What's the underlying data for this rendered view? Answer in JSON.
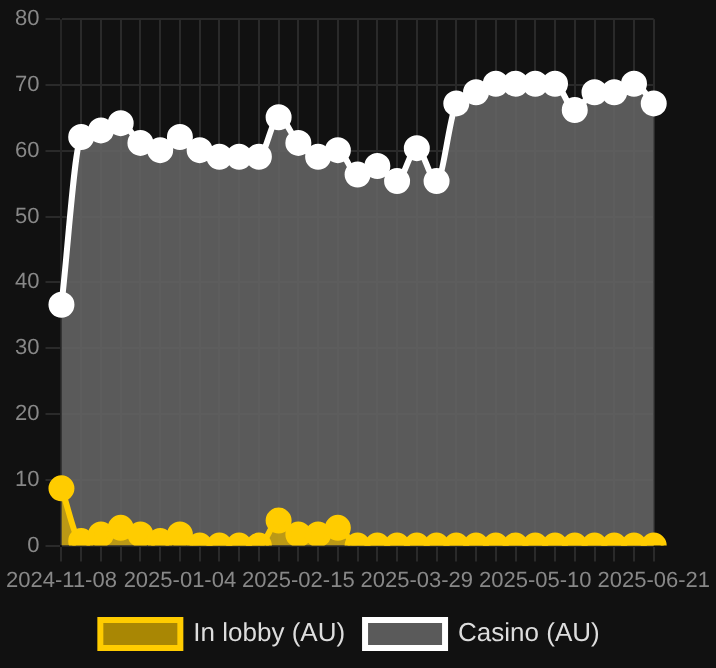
{
  "chart_data": {
    "type": "area",
    "categories": [
      "2024-11-08",
      null,
      null,
      null,
      null,
      null,
      "2025-01-04",
      null,
      null,
      null,
      null,
      null,
      "2025-02-15",
      null,
      null,
      null,
      null,
      null,
      "2025-03-29",
      null,
      null,
      null,
      null,
      null,
      "2025-05-10",
      null,
      null,
      null,
      null,
      null,
      "2025-06-21"
    ],
    "series": [
      {
        "name": "In lobby (AU)",
        "color": "#ffcc00",
        "values": [
          8.7,
          0.7,
          1.7,
          2.7,
          1.7,
          0.7,
          1.7,
          0,
          0,
          0,
          0,
          3.8,
          1.7,
          1.7,
          2.7,
          0,
          0,
          0,
          0,
          0,
          0,
          0,
          0,
          0,
          0,
          0,
          0,
          0,
          0,
          0,
          0
        ]
      },
      {
        "name": "Casino (AU)",
        "color": "#ffffff",
        "values": [
          36.6,
          62.1,
          63.1,
          64.2,
          61.2,
          60.1,
          62.1,
          60.1,
          59.1,
          59.1,
          59.1,
          65.1,
          61.2,
          59.1,
          60.1,
          56.4,
          57.7,
          55.4,
          60.4,
          55.4,
          67.2,
          68.9,
          70.2,
          70.2,
          70.2,
          70.2,
          66.2,
          68.9,
          68.9,
          70.2,
          67.2
        ]
      }
    ],
    "ylim": [
      0,
      80
    ],
    "yticks": [
      0,
      10,
      20,
      30,
      40,
      50,
      60,
      70,
      80
    ],
    "grid": true,
    "legend": "bottom",
    "marker": "circle"
  }
}
